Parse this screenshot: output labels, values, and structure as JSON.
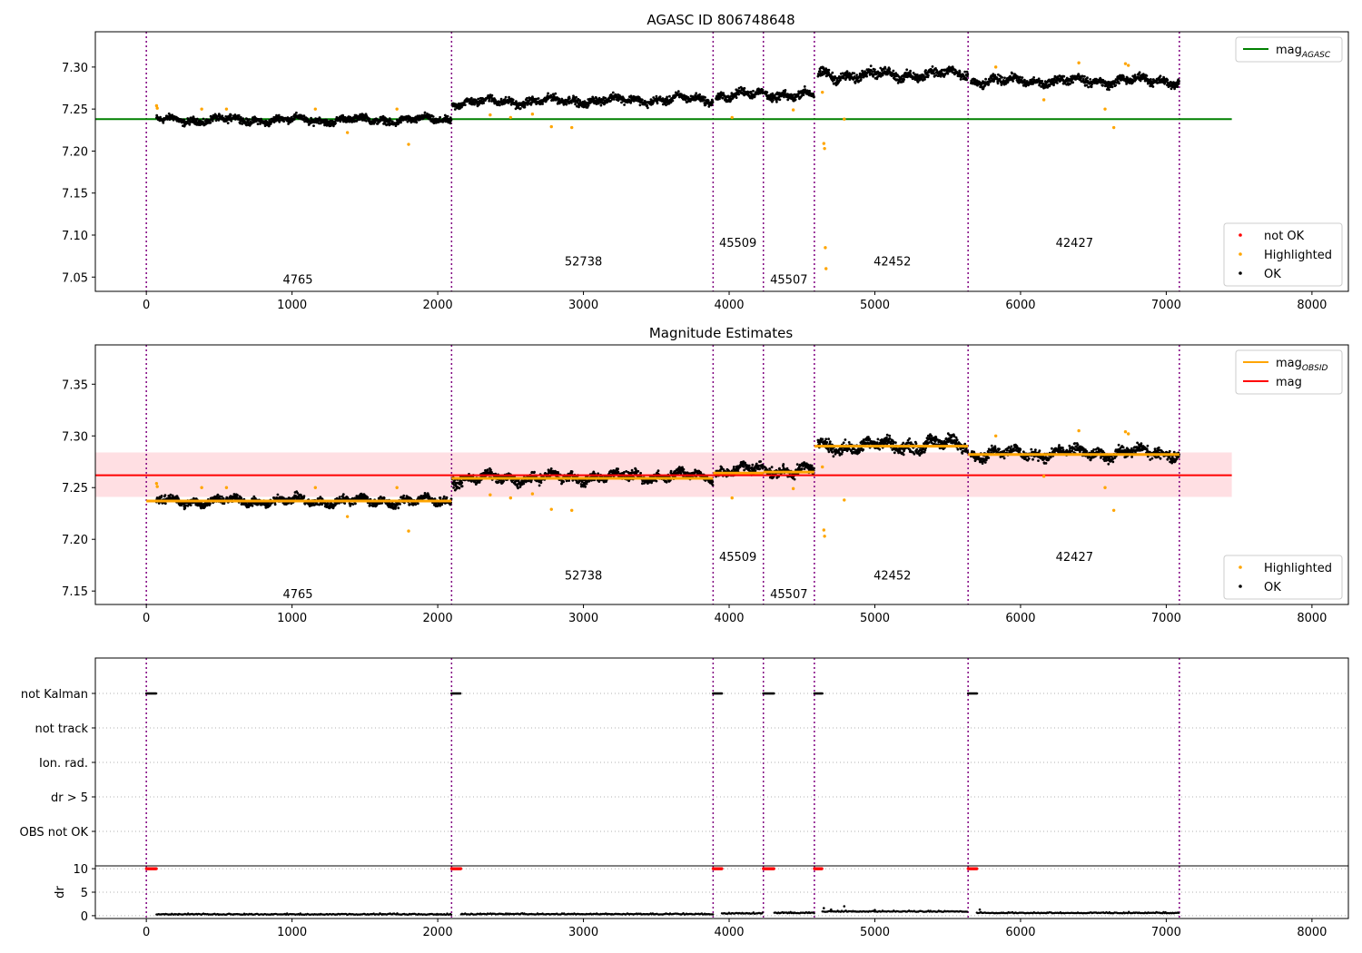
{
  "colors": {
    "ok": "#000000",
    "highlighted": "#ffa500",
    "not_ok": "#ff0000",
    "agasc_line": "#008000",
    "mag_line": "#ff0000",
    "mag_band": "#ffc0c8",
    "obsid_line": "#ffa500",
    "obsid_boundary": "#800080",
    "grid": "#b0b0b0"
  },
  "icons": {
    "legend_point": "dot-marker",
    "legend_line": "line-marker"
  },
  "chart_data": [
    {
      "type": "scatter",
      "title": "AGASC ID 806748648",
      "xlim": [
        -350,
        8250
      ],
      "ylim": [
        7.033,
        7.342
      ],
      "xticks": [
        0,
        1000,
        2000,
        3000,
        4000,
        5000,
        6000,
        7000,
        8000
      ],
      "xtick_labels": [
        "0",
        "1000",
        "2000",
        "3000",
        "4000",
        "5000",
        "6000",
        "7000",
        "8000"
      ],
      "yticks": [
        7.05,
        7.1,
        7.15,
        7.2,
        7.25,
        7.3
      ],
      "ytick_labels": [
        "7.05",
        "7.10",
        "7.15",
        "7.20",
        "7.25",
        "7.30"
      ],
      "grid": false,
      "obsid_boundaries": [
        0,
        2095,
        3890,
        4235,
        4585,
        5640,
        7090
      ],
      "obsid_labels": [
        {
          "text": "4765",
          "x": 1040,
          "y": 7.042
        },
        {
          "text": "52738",
          "x": 3000,
          "y": 7.064
        },
        {
          "text": "45509",
          "x": 4060,
          "y": 7.086
        },
        {
          "text": "45507",
          "x": 4410,
          "y": 7.042
        },
        {
          "text": "42452",
          "x": 5120,
          "y": 7.064
        },
        {
          "text": "42427",
          "x": 6370,
          "y": 7.086
        }
      ],
      "series": [
        {
          "kind": "scatter",
          "segments": [
            {
              "x": [
                70,
                2095
              ],
              "level": [
                7.237,
                7.237
              ],
              "noise": 0.005
            },
            {
              "x": [
                2100,
                3890
              ],
              "level": [
                7.258,
                7.262
              ],
              "noise": 0.0055
            },
            {
              "x": [
                3910,
                4235
              ],
              "level": [
                7.265,
                7.268
              ],
              "noise": 0.006
            },
            {
              "x": [
                4245,
                4585
              ],
              "level": [
                7.268,
                7.266
              ],
              "noise": 0.006
            },
            {
              "x": [
                4610,
                5640
              ],
              "level": [
                7.29,
                7.292
              ],
              "noise": 0.007
            },
            {
              "x": [
                5660,
                7090
              ],
              "level": [
                7.283,
                7.284
              ],
              "noise": 0.006
            }
          ]
        },
        {
          "kind": "highlighted",
          "x": [
            70,
            75,
            380,
            550,
            1160,
            1380,
            1720,
            1800,
            2360,
            2500,
            2650,
            2780,
            2920,
            4020,
            4440,
            4640,
            4650,
            4655,
            4660,
            4665,
            4790,
            5830,
            6160,
            6400,
            6580,
            6640,
            6720,
            6740
          ],
          "y": [
            7.254,
            7.251,
            7.25,
            7.25,
            7.25,
            7.222,
            7.25,
            7.208,
            7.243,
            7.24,
            7.244,
            7.229,
            7.228,
            7.24,
            7.249,
            7.27,
            7.209,
            7.203,
            7.085,
            7.06,
            7.238,
            7.3,
            7.261,
            7.305,
            7.25,
            7.228,
            7.304,
            7.302
          ]
        }
      ],
      "agasc_mag": {
        "x": [
          -350,
          7450
        ],
        "y": 7.238
      },
      "legends": [
        {
          "placement": "top-right",
          "entries": [
            {
              "label": "mag",
              "label_sub": "AGASC",
              "marker": "line",
              "color": "#008000"
            }
          ]
        },
        {
          "placement": "bottom-right",
          "entries": [
            {
              "label": "not OK",
              "marker": "dot",
              "color": "#ff0000"
            },
            {
              "label": "Highlighted",
              "marker": "dot",
              "color": "#ffa500"
            },
            {
              "label": "OK",
              "marker": "dot",
              "color": "#000000"
            }
          ]
        }
      ]
    },
    {
      "type": "scatter",
      "title": "Magnitude Estimates",
      "xlim": [
        -350,
        8250
      ],
      "ylim": [
        7.137,
        7.388
      ],
      "xticks": [
        0,
        1000,
        2000,
        3000,
        4000,
        5000,
        6000,
        7000,
        8000
      ],
      "xtick_labels": [
        "0",
        "1000",
        "2000",
        "3000",
        "4000",
        "5000",
        "6000",
        "7000",
        "8000"
      ],
      "yticks": [
        7.15,
        7.2,
        7.25,
        7.3,
        7.35
      ],
      "ytick_labels": [
        "7.15",
        "7.20",
        "7.25",
        "7.30",
        "7.35"
      ],
      "grid": false,
      "obsid_boundaries": [
        0,
        2095,
        3890,
        4235,
        4585,
        5640,
        7090
      ],
      "obsid_labels": [
        {
          "text": "4765",
          "x": 1040,
          "y": 7.143
        },
        {
          "text": "52738",
          "x": 3000,
          "y": 7.161
        },
        {
          "text": "45509",
          "x": 4060,
          "y": 7.179
        },
        {
          "text": "45507",
          "x": 4410,
          "y": 7.143
        },
        {
          "text": "42452",
          "x": 5120,
          "y": 7.161
        },
        {
          "text": "42427",
          "x": 6370,
          "y": 7.179
        }
      ],
      "mag": {
        "x": [
          -350,
          7450
        ],
        "y": 7.262,
        "band": [
          7.241,
          7.284
        ]
      },
      "mag_obsid": [
        {
          "x": [
            0,
            2095
          ],
          "y": 7.237
        },
        {
          "x": [
            2095,
            3890
          ],
          "y": 7.259
        },
        {
          "x": [
            3890,
            4235
          ],
          "y": 7.264
        },
        {
          "x": [
            4235,
            4585
          ],
          "y": 7.265
        },
        {
          "x": [
            4585,
            5640
          ],
          "y": 7.29
        },
        {
          "x": [
            5640,
            7090
          ],
          "y": 7.282
        }
      ],
      "highlighted": {
        "x": [
          70,
          75,
          380,
          550,
          1160,
          1380,
          1720,
          1800,
          2360,
          2500,
          2650,
          2780,
          2920,
          4020,
          4440,
          4640,
          4650,
          4655,
          4790,
          5830,
          6160,
          6400,
          6580,
          6640,
          6720,
          6740
        ],
        "y": [
          7.254,
          7.251,
          7.25,
          7.25,
          7.25,
          7.222,
          7.25,
          7.208,
          7.243,
          7.24,
          7.244,
          7.229,
          7.228,
          7.24,
          7.249,
          7.27,
          7.209,
          7.203,
          7.238,
          7.3,
          7.261,
          7.305,
          7.25,
          7.228,
          7.304,
          7.302
        ]
      },
      "legends": [
        {
          "placement": "top-right",
          "entries": [
            {
              "label": "mag",
              "label_sub": "OBSID",
              "marker": "line",
              "color": "#ffa500"
            },
            {
              "label": "mag",
              "label_sub": "",
              "marker": "line",
              "color": "#ff0000"
            }
          ]
        },
        {
          "placement": "bottom-right",
          "entries": [
            {
              "label": "Highlighted",
              "marker": "dot",
              "color": "#ffa500"
            },
            {
              "label": "OK",
              "marker": "dot",
              "color": "#000000"
            }
          ]
        }
      ]
    },
    {
      "type": "scatter",
      "title": "",
      "xlim": [
        -350,
        8250
      ],
      "flag_rows": [
        "not Kalman",
        "not track",
        "Ion. rad.",
        "dr > 5",
        "OBS not OK"
      ],
      "flags": {
        "not Kalman": [
          [
            0,
            70
          ],
          [
            2095,
            2160
          ],
          [
            3890,
            3950
          ],
          [
            4235,
            4310
          ],
          [
            4585,
            4640
          ],
          [
            5640,
            5700
          ]
        ],
        "not track": [],
        "Ion. rad.": [],
        "dr > 5": [],
        "OBS not OK": []
      }
    },
    {
      "type": "scatter",
      "title": "",
      "xlim": [
        -350,
        8250
      ],
      "ylim": [
        -0.6,
        10.6
      ],
      "ylabel": "dr",
      "xticks": [
        0,
        1000,
        2000,
        3000,
        4000,
        5000,
        6000,
        7000,
        8000
      ],
      "xtick_labels": [
        "0",
        "1000",
        "2000",
        "3000",
        "4000",
        "5000",
        "6000",
        "7000",
        "8000"
      ],
      "yticks": [
        0,
        5,
        10
      ],
      "ytick_labels": [
        "0",
        "5",
        "10"
      ],
      "capped_at": 10,
      "capped_segments": [
        [
          0,
          70
        ],
        [
          2095,
          2160
        ],
        [
          3890,
          3950
        ],
        [
          4235,
          4310
        ],
        [
          4585,
          4640
        ],
        [
          5640,
          5700
        ]
      ],
      "dr_segments": [
        {
          "x": [
            70,
            2095
          ],
          "level": 0.2
        },
        {
          "x": [
            2160,
            3890
          ],
          "level": 0.25
        },
        {
          "x": [
            3950,
            4235
          ],
          "level": 0.4
        },
        {
          "x": [
            4310,
            4585
          ],
          "level": 0.5
        },
        {
          "x": [
            4640,
            5640
          ],
          "level": 0.8
        },
        {
          "x": [
            5700,
            7090
          ],
          "level": 0.5
        }
      ],
      "dr_outliers": {
        "x": [
          4650,
          4700,
          4790,
          5000,
          5720
        ],
        "y": [
          1.6,
          1.3,
          2.0,
          1.2,
          1.3
        ]
      }
    }
  ]
}
